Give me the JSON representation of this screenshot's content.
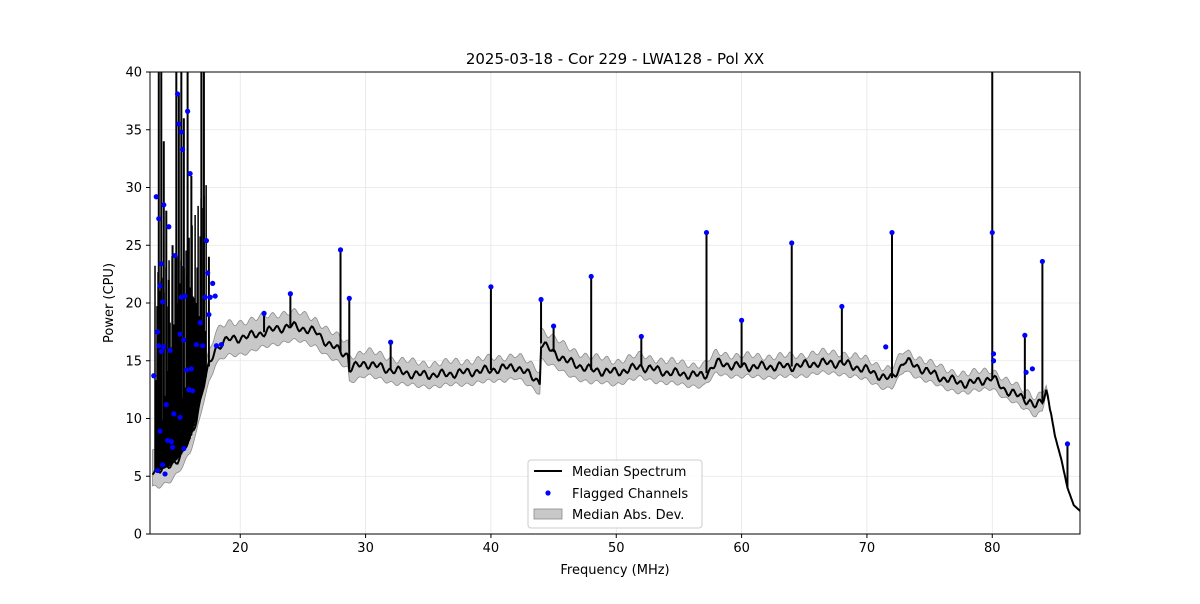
{
  "chart_data": {
    "type": "line",
    "title": "2025-03-18 - Cor 229 - LWA128 - Pol XX",
    "xlabel": "Frequency (MHz)",
    "ylabel": "Power (CPU)",
    "xlim": [
      12.8,
      87.0
    ],
    "ylim": [
      0,
      40
    ],
    "xticks": [
      20,
      30,
      40,
      50,
      60,
      70,
      80
    ],
    "yticks": [
      0,
      5,
      10,
      15,
      20,
      25,
      30,
      35,
      40
    ],
    "grid": true,
    "legend_position": "lower-center",
    "legend": [
      "Median Spectrum",
      "Flagged Channels",
      "Median Abs. Dev."
    ],
    "colors": {
      "median_line": "#000000",
      "flagged_points": "#0000ff",
      "mad_band_fill": "#c8c8c8",
      "mad_band_edge": "#8c8c8c"
    },
    "series": [
      {
        "name": "Median Spectrum",
        "kind": "line",
        "baseline": {
          "x": [
            13.0,
            13.5,
            14.0,
            14.5,
            15.0,
            15.5,
            16.0,
            16.5,
            17.0,
            17.5,
            18.0,
            18.5,
            19.0,
            20.0,
            21.0,
            22.0,
            23.0,
            24.0,
            25.0,
            26.0,
            27.0,
            28.0,
            28.6,
            28.7,
            30.0,
            32.0,
            34.0,
            36.0,
            38.0,
            40.0,
            42.0,
            43.9,
            44.0,
            46.0,
            48.0,
            50.0,
            52.0,
            54.0,
            56.0,
            57.0,
            58.0,
            60.0,
            62.0,
            64.0,
            66.0,
            68.0,
            70.0,
            71.5,
            72.0,
            73.0,
            74.0,
            76.0,
            78.0,
            80.0,
            81.0,
            82.0,
            83.0,
            83.5,
            84.0,
            84.3,
            84.6,
            85.0,
            85.5,
            86.0,
            86.5,
            87.0
          ],
          "y": [
            5.5,
            5.5,
            5.7,
            6.0,
            6.5,
            7.2,
            8.2,
            10.0,
            12.5,
            14.5,
            16.0,
            16.5,
            16.8,
            17.0,
            17.2,
            17.5,
            17.8,
            18.0,
            17.8,
            17.5,
            16.5,
            15.8,
            15.5,
            14.3,
            14.8,
            14.2,
            13.8,
            13.8,
            14.0,
            14.2,
            14.5,
            13.2,
            16.5,
            15.0,
            14.2,
            14.0,
            14.5,
            14.0,
            13.8,
            13.7,
            14.8,
            14.5,
            14.5,
            14.5,
            14.8,
            14.8,
            14.2,
            13.5,
            13.5,
            15.0,
            14.5,
            13.5,
            13.0,
            13.5,
            12.5,
            12.0,
            11.5,
            11.0,
            11.5,
            12.5,
            11.0,
            8.5,
            6.5,
            4.0,
            2.5,
            2.0
          ]
        },
        "spikes": [
          {
            "x": 21.9,
            "y": 19.0
          },
          {
            "x": 24.0,
            "y": 20.8
          },
          {
            "x": 28.0,
            "y": 24.5
          },
          {
            "x": 28.7,
            "y": 20.3
          },
          {
            "x": 32.0,
            "y": 16.5
          },
          {
            "x": 40.0,
            "y": 21.4
          },
          {
            "x": 44.0,
            "y": 20.3
          },
          {
            "x": 45.0,
            "y": 17.9
          },
          {
            "x": 48.0,
            "y": 22.3
          },
          {
            "x": 52.0,
            "y": 17.0
          },
          {
            "x": 57.2,
            "y": 26.1
          },
          {
            "x": 60.0,
            "y": 18.5
          },
          {
            "x": 64.0,
            "y": 25.2
          },
          {
            "x": 68.0,
            "y": 19.7
          },
          {
            "x": 72.0,
            "y": 26.0
          },
          {
            "x": 80.0,
            "y": 40.0
          },
          {
            "x": 82.6,
            "y": 17.2
          },
          {
            "x": 84.0,
            "y": 23.6
          },
          {
            "x": 86.0,
            "y": 7.8
          }
        ],
        "rfi_spikes": [
          {
            "x": 13.5,
            "y": 40.0
          },
          {
            "x": 13.7,
            "y": 40.0
          },
          {
            "x": 13.9,
            "y": 34.0
          },
          {
            "x": 14.1,
            "y": 28.0
          },
          {
            "x": 14.3,
            "y": 22.0
          },
          {
            "x": 14.6,
            "y": 25.0
          },
          {
            "x": 14.9,
            "y": 40.0
          },
          {
            "x": 15.1,
            "y": 38.0
          },
          {
            "x": 15.3,
            "y": 40.0
          },
          {
            "x": 15.5,
            "y": 36.0
          },
          {
            "x": 15.8,
            "y": 40.0
          },
          {
            "x": 16.1,
            "y": 31.0
          },
          {
            "x": 16.5,
            "y": 20.0
          },
          {
            "x": 16.9,
            "y": 40.0
          },
          {
            "x": 17.1,
            "y": 40.0
          },
          {
            "x": 17.5,
            "y": 24.0
          }
        ]
      },
      {
        "name": "Flagged Channels",
        "kind": "scatter",
        "x": [
          13.1,
          13.3,
          13.4,
          13.4,
          13.5,
          13.5,
          13.6,
          13.6,
          13.7,
          13.7,
          13.8,
          13.8,
          13.9,
          13.9,
          14.0,
          14.1,
          14.2,
          14.3,
          14.4,
          14.5,
          14.6,
          14.7,
          14.8,
          15.0,
          15.1,
          15.2,
          15.2,
          15.3,
          15.3,
          15.4,
          15.5,
          15.5,
          15.6,
          15.7,
          15.8,
          15.9,
          16.0,
          16.1,
          16.2,
          16.5,
          16.8,
          17.0,
          17.2,
          17.3,
          17.4,
          17.5,
          17.6,
          17.8,
          18.0,
          18.1,
          18.5,
          21.9,
          24.0,
          28.0,
          28.7,
          32.0,
          40.0,
          44.0,
          45.0,
          48.0,
          52.0,
          57.2,
          60.0,
          64.0,
          68.0,
          71.5,
          72.0,
          80.0,
          80.1,
          80.1,
          82.6,
          82.7,
          83.2,
          84.0,
          86.0
        ],
        "y": [
          13.7,
          29.2,
          17.5,
          5.5,
          27.3,
          16.3,
          21.5,
          8.9,
          23.4,
          15.8,
          20.1,
          6.0,
          28.5,
          16.2,
          5.2,
          11.2,
          8.1,
          26.6,
          15.9,
          8.0,
          7.5,
          10.4,
          24.1,
          38.1,
          35.5,
          17.3,
          10.1,
          34.8,
          20.5,
          33.3,
          7.4,
          16.8,
          20.6,
          14.2,
          36.6,
          12.5,
          31.2,
          14.3,
          12.4,
          16.4,
          18.3,
          16.3,
          20.5,
          25.4,
          22.6,
          19.0,
          20.5,
          21.7,
          20.6,
          16.3,
          16.4,
          19.1,
          20.8,
          24.6,
          20.4,
          16.6,
          21.4,
          20.3,
          18.0,
          22.3,
          17.1,
          26.1,
          18.5,
          25.2,
          19.7,
          16.2,
          26.1,
          26.1,
          15.6,
          15.0,
          17.2,
          14.0,
          14.3,
          23.6,
          7.8
        ]
      },
      {
        "name": "Median Abs. Dev.",
        "kind": "band",
        "note_values": "half-width of shaded band in CPU units",
        "x": [
          13.0,
          14.0,
          16.0,
          18.0,
          20.0,
          25.0,
          28.7,
          35.0,
          43.9,
          44.0,
          50.0,
          60.0,
          70.0,
          80.0,
          84.0,
          84.5
        ],
        "halfwidth": [
          1.5,
          1.3,
          1.2,
          1.4,
          1.4,
          1.2,
          1.1,
          1.0,
          1.0,
          1.3,
          1.0,
          0.9,
          0.9,
          0.8,
          0.8,
          0.0
        ]
      }
    ]
  }
}
